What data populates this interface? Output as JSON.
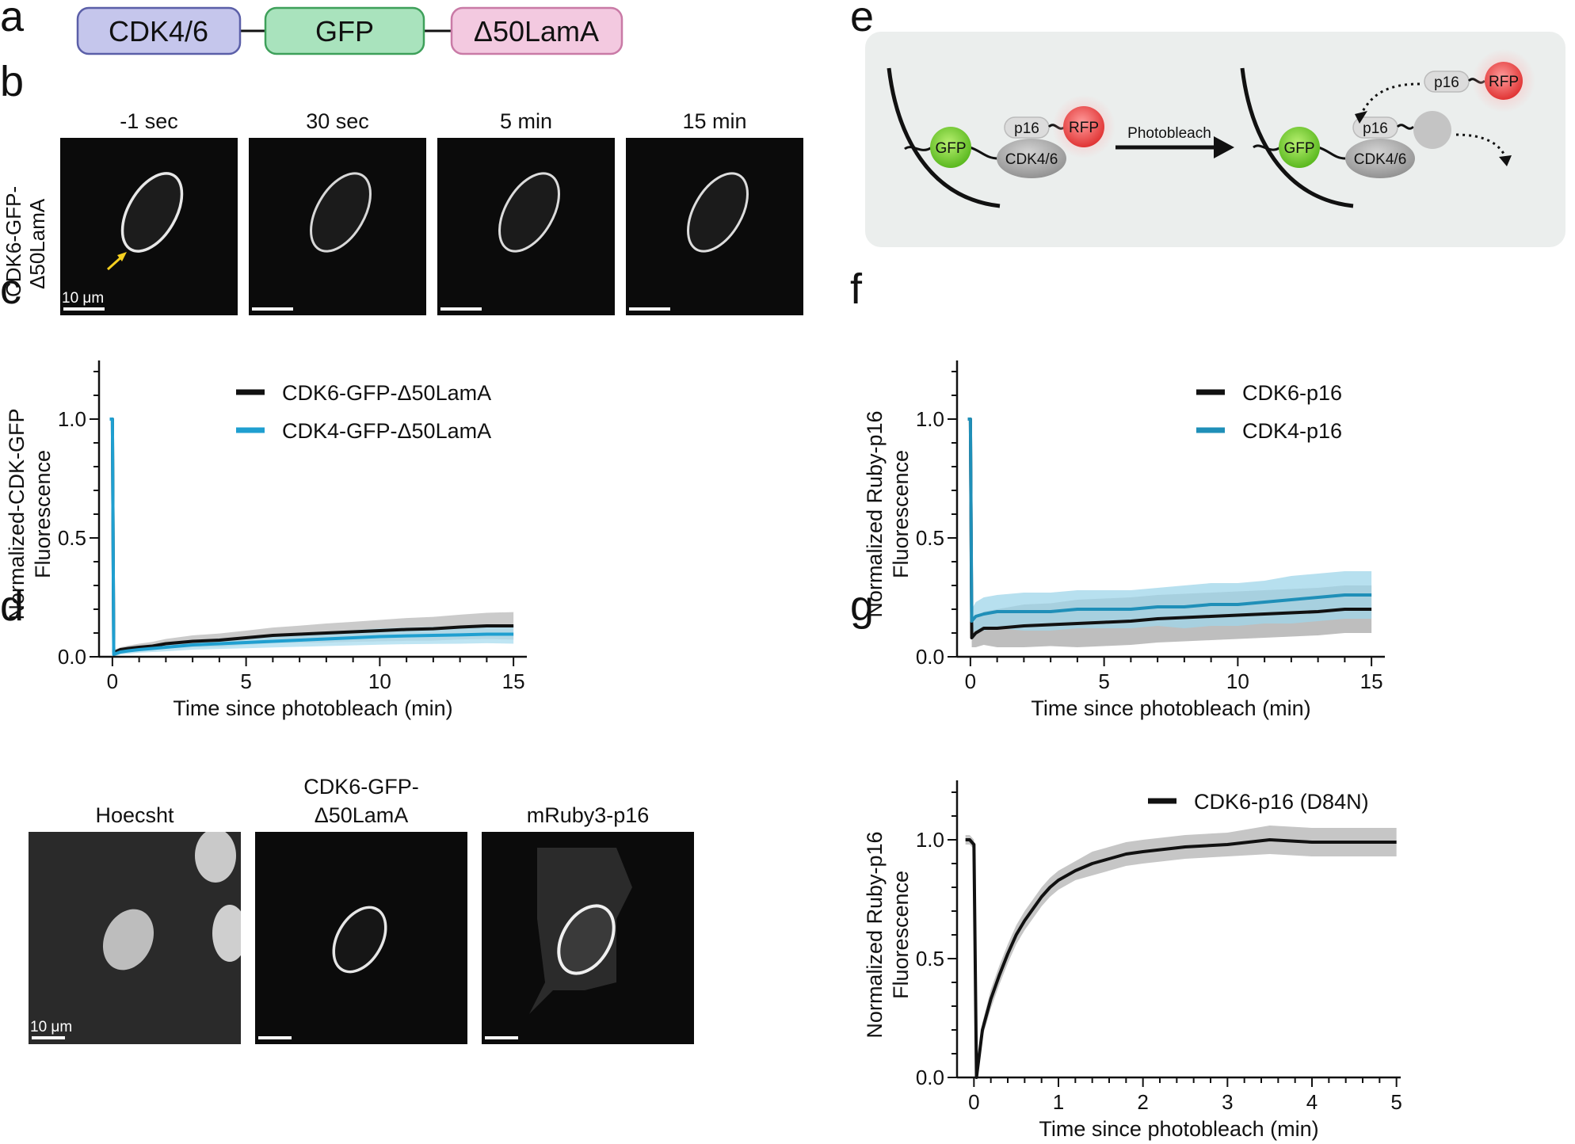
{
  "panels": {
    "a": "a",
    "b": "b",
    "c": "c",
    "d": "d",
    "e": "e",
    "f": "f",
    "g": "g"
  },
  "a": {
    "boxes": [
      "CDK4/6",
      "GFP",
      "Δ50LamA"
    ],
    "colors": {
      "cdk": "#c5c6ec",
      "gfp": "#a9e3bd",
      "lam": "#f3c9e0"
    }
  },
  "b": {
    "ylabel_line1": "CDK6-GFP-",
    "ylabel_line2": "Δ50LamA",
    "timepoints": [
      "-1 sec",
      "30 sec",
      "5 min",
      "15 min"
    ],
    "scalebar_label": "10 μm"
  },
  "c": {
    "ylabel_line1": "Normalized-CDK-GFP",
    "ylabel_line2": "Fluorescence",
    "xlabel": "Time since photobleach (min)",
    "legend": [
      "CDK6-GFP-Δ50LamA",
      "CDK4-GFP-Δ50LamA"
    ],
    "yticks": [
      "0.0",
      "0.5",
      "1.0"
    ],
    "xticks": [
      "0",
      "5",
      "10",
      "15"
    ]
  },
  "d": {
    "titles": [
      "Hoecsht",
      "CDK6-GFP-",
      "Δ50LamA",
      "mRuby3-p16"
    ],
    "scalebar_label": "10 μm"
  },
  "e": {
    "labels": {
      "gfp": "GFP",
      "cdk": "CDK4/6",
      "p16": "p16",
      "rfp": "RFP",
      "photobleach": "Photobleach"
    }
  },
  "f": {
    "ylabel_line1": "Normalized Ruby-p16",
    "ylabel_line2": "Fluorescence",
    "xlabel": "Time since photobleach (min)",
    "legend": [
      "CDK6-p16",
      "CDK4-p16"
    ],
    "yticks": [
      "0.0",
      "0.5",
      "1.0"
    ],
    "xticks": [
      "0",
      "5",
      "10",
      "15"
    ]
  },
  "g": {
    "ylabel_line1": "Normalized Ruby-p16",
    "ylabel_line2": "Fluorescence",
    "xlabel": "Time since photobleach (min)",
    "legend": [
      "CDK6-p16 (D84N)"
    ],
    "yticks": [
      "0.0",
      "0.5",
      "1.0"
    ],
    "xticks": [
      "0",
      "1",
      "2",
      "3",
      "4",
      "5"
    ]
  },
  "chart_data": [
    {
      "panel": "c",
      "type": "line",
      "xlabel": "Time since photobleach (min)",
      "ylabel": "Normalized-CDK-GFP Fluorescence",
      "xlim": [
        -0.5,
        15.5
      ],
      "ylim": [
        0,
        1.2
      ],
      "series": [
        {
          "name": "CDK6-GFP-Δ50LamA",
          "color": "#111111",
          "band_color": "#b9b9b9",
          "x": [
            -0.1,
            0,
            0.05,
            0.1,
            0.3,
            0.6,
            1,
            1.5,
            2,
            3,
            4,
            5,
            6,
            7,
            8,
            9,
            10,
            11,
            12,
            13,
            14,
            15
          ],
          "y": [
            1.0,
            1.0,
            0.02,
            0.02,
            0.03,
            0.035,
            0.04,
            0.045,
            0.055,
            0.065,
            0.07,
            0.08,
            0.09,
            0.095,
            0.1,
            0.105,
            0.11,
            0.115,
            0.118,
            0.125,
            0.13,
            0.13
          ],
          "err": [
            0,
            0,
            0.01,
            0.01,
            0.01,
            0.012,
            0.015,
            0.018,
            0.02,
            0.025,
            0.028,
            0.03,
            0.033,
            0.036,
            0.04,
            0.042,
            0.045,
            0.048,
            0.05,
            0.052,
            0.055,
            0.058
          ]
        },
        {
          "name": "CDK4-GFP-Δ50LamA",
          "color": "#1f9fd0",
          "band_color": "#a9dcef",
          "x": [
            -0.1,
            0,
            0.05,
            0.1,
            0.3,
            0.6,
            1,
            1.5,
            2,
            3,
            4,
            5,
            6,
            7,
            8,
            9,
            10,
            11,
            12,
            13,
            14,
            15
          ],
          "y": [
            1.0,
            1.0,
            0.01,
            0.012,
            0.02,
            0.025,
            0.03,
            0.035,
            0.04,
            0.05,
            0.055,
            0.06,
            0.065,
            0.07,
            0.075,
            0.08,
            0.085,
            0.088,
            0.09,
            0.092,
            0.095,
            0.095
          ],
          "err": [
            0,
            0,
            0.01,
            0.01,
            0.01,
            0.012,
            0.013,
            0.015,
            0.017,
            0.02,
            0.022,
            0.024,
            0.026,
            0.028,
            0.03,
            0.032,
            0.034,
            0.035,
            0.036,
            0.037,
            0.038,
            0.04
          ]
        }
      ]
    },
    {
      "panel": "f",
      "type": "line",
      "xlabel": "Time since photobleach (min)",
      "ylabel": "Normalized Ruby-p16 Fluorescence",
      "xlim": [
        -0.5,
        15.5
      ],
      "ylim": [
        0,
        1.2
      ],
      "series": [
        {
          "name": "CDK6-p16",
          "color": "#111111",
          "band_color": "#a8a8a8",
          "x": [
            -0.1,
            0,
            0.05,
            0.2,
            0.5,
            1,
            2,
            3,
            4,
            5,
            6,
            7,
            8,
            9,
            10,
            11,
            12,
            13,
            14,
            15
          ],
          "y": [
            1.0,
            1.0,
            0.08,
            0.1,
            0.12,
            0.12,
            0.13,
            0.135,
            0.14,
            0.145,
            0.15,
            0.16,
            0.165,
            0.17,
            0.175,
            0.18,
            0.185,
            0.19,
            0.2,
            0.2
          ],
          "err": [
            0,
            0,
            0.04,
            0.06,
            0.07,
            0.08,
            0.09,
            0.09,
            0.1,
            0.1,
            0.1,
            0.1,
            0.1,
            0.1,
            0.1,
            0.1,
            0.1,
            0.1,
            0.1,
            0.1
          ]
        },
        {
          "name": "CDK4-p16",
          "color": "#1f8fb8",
          "band_color": "#9fd6ea",
          "x": [
            -0.1,
            0,
            0.05,
            0.2,
            0.5,
            1,
            2,
            3,
            4,
            5,
            6,
            7,
            8,
            9,
            10,
            11,
            12,
            13,
            14,
            15
          ],
          "y": [
            1.0,
            1.0,
            0.15,
            0.17,
            0.18,
            0.19,
            0.19,
            0.19,
            0.2,
            0.2,
            0.2,
            0.21,
            0.21,
            0.22,
            0.22,
            0.23,
            0.24,
            0.25,
            0.26,
            0.26
          ],
          "err": [
            0,
            0,
            0.05,
            0.06,
            0.07,
            0.07,
            0.08,
            0.08,
            0.08,
            0.08,
            0.08,
            0.08,
            0.09,
            0.09,
            0.09,
            0.09,
            0.1,
            0.1,
            0.1,
            0.1
          ]
        }
      ]
    },
    {
      "panel": "g",
      "type": "line",
      "xlabel": "Time since photobleach (min)",
      "ylabel": "Normalized Ruby-p16 Fluorescence",
      "xlim": [
        -0.2,
        5.05
      ],
      "ylim": [
        0,
        1.2
      ],
      "series": [
        {
          "name": "CDK6-p16 (D84N)",
          "color": "#111111",
          "band_color": "#b3b3b3",
          "x": [
            -0.1,
            -0.05,
            0,
            0.03,
            0.1,
            0.2,
            0.3,
            0.4,
            0.5,
            0.6,
            0.7,
            0.8,
            0.9,
            1,
            1.2,
            1.4,
            1.6,
            1.8,
            2,
            2.5,
            3,
            3.5,
            4,
            4.5,
            5
          ],
          "y": [
            1.0,
            1.0,
            0.98,
            0.0,
            0.2,
            0.33,
            0.43,
            0.52,
            0.6,
            0.66,
            0.71,
            0.76,
            0.8,
            0.83,
            0.87,
            0.9,
            0.92,
            0.94,
            0.95,
            0.97,
            0.98,
            1.0,
            0.99,
            0.99,
            0.99
          ],
          "err": [
            0.02,
            0.02,
            0.02,
            0.02,
            0.03,
            0.04,
            0.04,
            0.04,
            0.04,
            0.04,
            0.04,
            0.04,
            0.04,
            0.04,
            0.04,
            0.05,
            0.05,
            0.05,
            0.05,
            0.05,
            0.05,
            0.06,
            0.06,
            0.06,
            0.06
          ]
        }
      ]
    }
  ]
}
